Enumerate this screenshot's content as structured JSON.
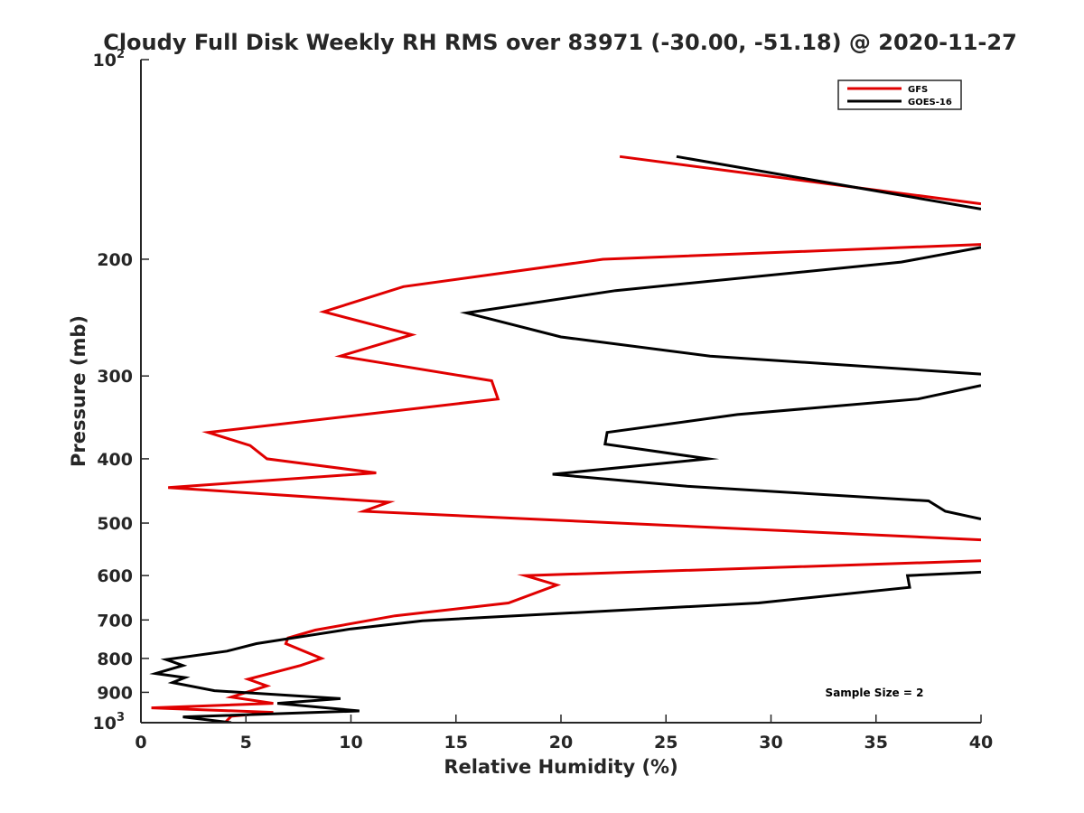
{
  "chart_data": {
    "type": "line",
    "title": "Cloudy Full Disk Weekly RH RMS over 83971 (-30.00, -51.18) @ 2020-11-27",
    "xlabel": "Relative Humidity (%)",
    "ylabel": "Pressure (mb)",
    "xlim": [
      0,
      40
    ],
    "ylim": [
      100,
      1000
    ],
    "y_scale": "log",
    "y_reversed": true,
    "grid": false,
    "legend_placement": "top-right",
    "x_ticks": [
      "0",
      "5",
      "10",
      "15",
      "20",
      "25",
      "30",
      "35",
      "40"
    ],
    "y_ticks": [
      {
        "value": 100,
        "base": "10",
        "exp": "2"
      },
      {
        "value": 200,
        "label": "200"
      },
      {
        "value": 300,
        "label": "300"
      },
      {
        "value": 400,
        "label": "400"
      },
      {
        "value": 500,
        "label": "500"
      },
      {
        "value": 600,
        "label": "600"
      },
      {
        "value": 700,
        "label": "700"
      },
      {
        "value": 800,
        "label": "800"
      },
      {
        "value": 900,
        "label": "900"
      },
      {
        "value": 1000,
        "base": "10",
        "exp": "3"
      }
    ],
    "series": [
      {
        "name": "GFS",
        "color": "#e00000",
        "points": [
          [
            22.8,
            140
          ],
          [
            40,
            165
          ],
          null,
          [
            40,
            190
          ],
          [
            22,
            200
          ],
          [
            12.5,
            220
          ],
          [
            8.7,
            240
          ],
          [
            12.9,
            260
          ],
          [
            9.5,
            280
          ],
          [
            16.7,
            305
          ],
          [
            17,
            325
          ],
          [
            3.2,
            365
          ],
          [
            5.2,
            382
          ],
          [
            6,
            400
          ],
          [
            11.2,
            420
          ],
          [
            1.3,
            442
          ],
          [
            11.8,
            465
          ],
          [
            10.6,
            480
          ],
          [
            40,
            530
          ],
          null,
          [
            40,
            570
          ],
          [
            18.3,
            600
          ],
          [
            19.8,
            620
          ],
          [
            17.5,
            660
          ],
          [
            12.1,
            690
          ],
          [
            8.3,
            725
          ],
          [
            7,
            745
          ],
          [
            6.9,
            760
          ],
          [
            8.6,
            800
          ],
          [
            7.6,
            820
          ],
          [
            5.1,
            860
          ],
          [
            6,
            880
          ],
          [
            4.3,
            915
          ],
          [
            6.3,
            935
          ],
          [
            0.5,
            950
          ],
          [
            6.3,
            965
          ],
          [
            4.3,
            978
          ],
          [
            4,
            1000
          ]
        ]
      },
      {
        "name": "GOES-16",
        "color": "#000000",
        "points": [
          [
            25.5,
            140
          ],
          [
            40,
            168
          ],
          null,
          [
            40,
            192
          ],
          [
            36.2,
            202
          ],
          [
            22.6,
            223
          ],
          [
            15.5,
            241
          ],
          [
            20,
            262
          ],
          [
            27.1,
            280
          ],
          [
            40,
            298
          ],
          null,
          [
            40,
            310
          ],
          [
            37,
            325
          ],
          [
            28.4,
            343
          ],
          [
            22.2,
            365
          ],
          [
            22.1,
            380
          ],
          [
            27,
            400
          ],
          [
            19.6,
            422
          ],
          [
            26,
            440
          ],
          [
            37.5,
            463
          ],
          [
            38.3,
            480
          ],
          [
            40,
            493
          ],
          null,
          [
            40,
            593
          ],
          [
            36.5,
            600
          ],
          [
            36.6,
            625
          ],
          [
            29.4,
            660
          ],
          [
            13.4,
            702
          ],
          [
            10,
            722
          ],
          [
            5.5,
            760
          ],
          [
            4.1,
            780
          ],
          [
            1.2,
            803
          ],
          [
            2,
            820
          ],
          [
            0.7,
            843
          ],
          [
            2.1,
            855
          ],
          [
            1.5,
            870
          ],
          [
            3.5,
            895
          ],
          [
            9.5,
            920
          ],
          [
            6.5,
            935
          ],
          [
            10.4,
            960
          ],
          [
            2,
            980
          ],
          [
            4.3,
            1000
          ]
        ]
      }
    ],
    "legend": [
      "GFS",
      "GOES-16"
    ],
    "annotation": "Sample Size = 2"
  }
}
